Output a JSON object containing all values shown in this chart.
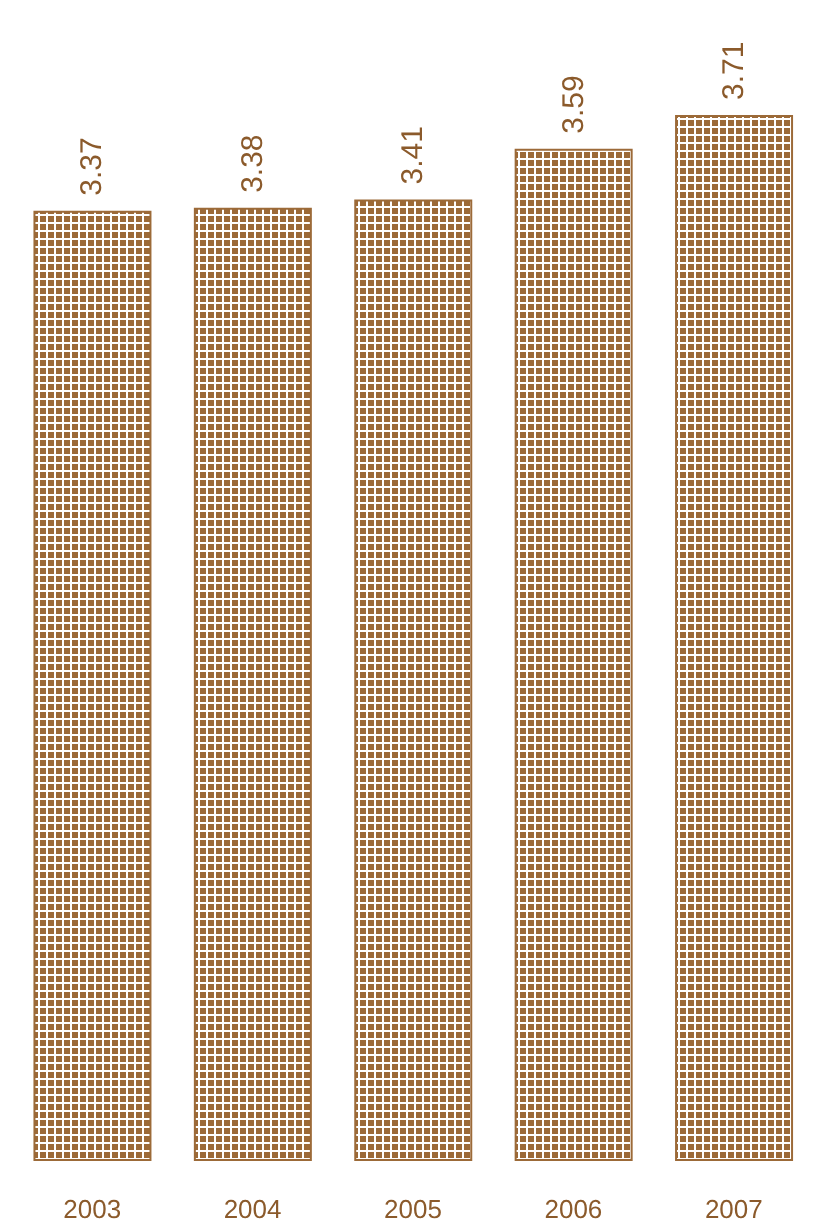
{
  "chart_data": {
    "type": "bar",
    "categories": [
      "2003",
      "2004",
      "2005",
      "2006",
      "2007"
    ],
    "values": [
      3.37,
      3.38,
      3.41,
      3.59,
      3.71
    ],
    "color": "#9c6a38",
    "data_labels": true
  }
}
